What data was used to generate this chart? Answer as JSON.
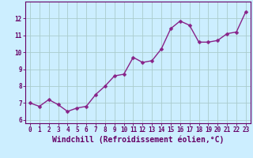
{
  "x": [
    0,
    1,
    2,
    3,
    4,
    5,
    6,
    7,
    8,
    9,
    10,
    11,
    12,
    13,
    14,
    15,
    16,
    17,
    18,
    19,
    20,
    21,
    22,
    23
  ],
  "y": [
    7.0,
    6.8,
    7.2,
    6.9,
    6.5,
    6.7,
    6.8,
    7.5,
    8.0,
    8.6,
    8.7,
    9.7,
    9.4,
    9.5,
    10.2,
    11.4,
    11.85,
    11.6,
    10.6,
    10.6,
    10.7,
    11.1,
    11.2,
    12.4
  ],
  "line_color": "#882288",
  "marker": "D",
  "marker_size": 2.5,
  "linewidth": 1.0,
  "background_color": "#cceeff",
  "grid_color": "#aacccc",
  "xlabel": "Windchill (Refroidissement éolien,°C)",
  "xlim": [
    -0.5,
    23.5
  ],
  "ylim": [
    5.8,
    13.0
  ],
  "yticks": [
    6,
    7,
    8,
    9,
    10,
    11,
    12
  ],
  "xticks": [
    0,
    1,
    2,
    3,
    4,
    5,
    6,
    7,
    8,
    9,
    10,
    11,
    12,
    13,
    14,
    15,
    16,
    17,
    18,
    19,
    20,
    21,
    22,
    23
  ],
  "tick_fontsize": 5.5,
  "xlabel_fontsize": 7.0,
  "tick_color": "#660066",
  "xlabel_color": "#660066",
  "axis_line_color": "#660066"
}
